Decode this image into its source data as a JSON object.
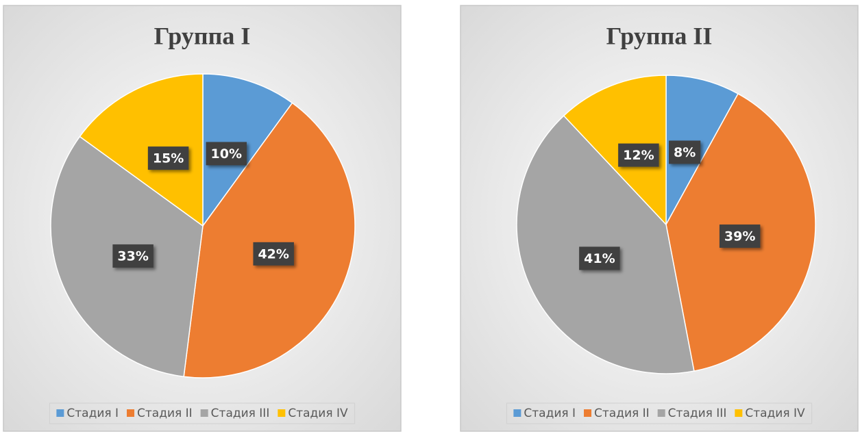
{
  "chart_data": [
    {
      "type": "pie",
      "title": "Группа I",
      "categories": [
        "Стадия I",
        "Стадия II",
        "Стадия III",
        "Стадия IV"
      ],
      "values": [
        10,
        42,
        33,
        15
      ],
      "value_labels": [
        "10%",
        "42%",
        "33%",
        "15%"
      ],
      "colors": [
        "#5b9bd5",
        "#ed7d31",
        "#a5a5a5",
        "#ffc000"
      ],
      "legend": "bottom"
    },
    {
      "type": "pie",
      "title": "Группа II",
      "categories": [
        "Стадия I",
        "Стадия II",
        "Стадия III",
        "Стадия IV"
      ],
      "values": [
        8,
        39,
        41,
        12
      ],
      "value_labels": [
        "8%",
        "39%",
        "41%",
        "12%"
      ],
      "colors": [
        "#5b9bd5",
        "#ed7d31",
        "#a5a5a5",
        "#ffc000"
      ],
      "legend": "bottom"
    }
  ]
}
